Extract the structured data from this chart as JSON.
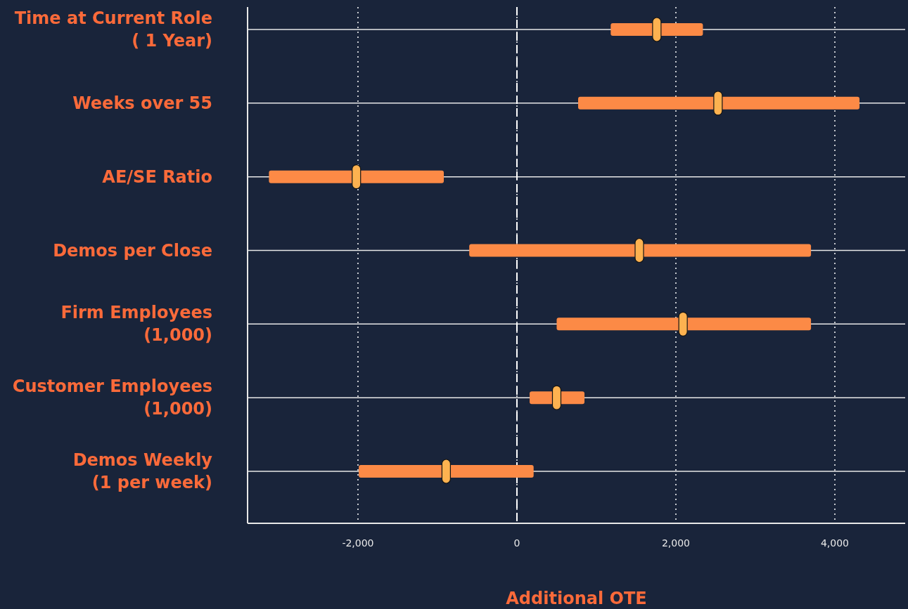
{
  "chart_data": {
    "type": "bar",
    "orientation": "horizontal",
    "xlabel": "Additional OTE",
    "categories": [
      "Time at Current Role ( 1 Year)",
      "Weeks over 55",
      "AE/SE Ratio",
      "Demos per Close",
      "Firm Employees (1,000)",
      "Customer Employees (1,000)",
      "Demos Weekly (1 per week)"
    ],
    "series": [
      {
        "color": "#fc8a46",
        "base": [
          1180,
          770,
          -3120,
          -600,
          500,
          160,
          -1990
        ],
        "values": [
          1160,
          3540,
          2200,
          4300,
          3200,
          690,
          2200
        ]
      },
      {
        "type": "scatter",
        "color": "#fdb250",
        "marker": "square",
        "x": [
          "Time at Current Role ( 1 Year)",
          "Weeks over 55",
          "AE/SE Ratio",
          "Demos per Close",
          "Firm Employees (1,000)",
          "Customer Employees (1,000)",
          "Demos Weekly (1 per week)"
        ],
        "values": [
          1760,
          2530,
          -2020,
          1540,
          2090,
          500,
          -890
        ]
      }
    ],
    "xlim": [
      -3389,
      4885
    ],
    "xticks": [
      {
        "value": -2000,
        "label": "-2,000"
      },
      0,
      {
        "value": 2000,
        "label": "2,000"
      },
      {
        "value": 4000,
        "label": "4,000"
      }
    ],
    "grid": true,
    "ref_lines": [
      {
        "axis": "x",
        "value": 0,
        "color": "#ffffff",
        "line_style": "dashed"
      }
    ]
  }
}
